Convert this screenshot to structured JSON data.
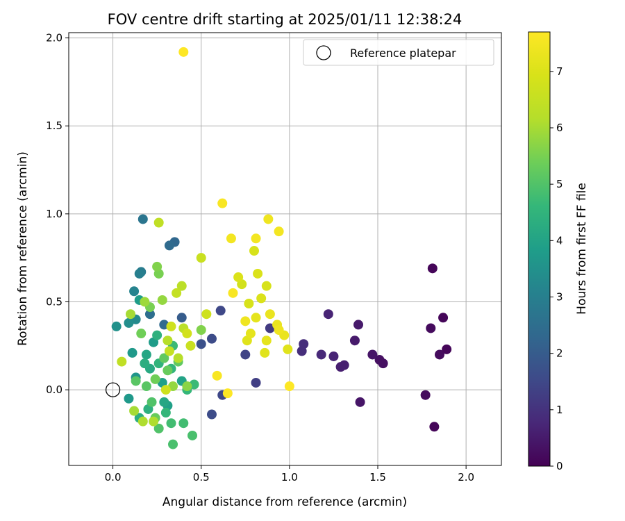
{
  "chart_data": {
    "type": "scatter",
    "title": "FOV centre drift starting at 2025/01/11 12:38:24",
    "xlabel": "Angular distance from reference (arcmin)",
    "ylabel": "Rotation from reference (arcmin)",
    "xlim": [
      -0.25,
      2.2
    ],
    "ylim": [
      -0.43,
      2.03
    ],
    "xticks": [
      0.0,
      0.5,
      1.0,
      1.5,
      2.0
    ],
    "xtick_labels": [
      "0.0",
      "0.5",
      "1.0",
      "1.5",
      "2.0"
    ],
    "yticks": [
      0.0,
      0.5,
      1.0,
      1.5,
      2.0
    ],
    "ytick_labels": [
      "0.0",
      "0.5",
      "1.0",
      "1.5",
      "2.0"
    ],
    "grid": true,
    "legend": {
      "placement": "top-right",
      "entries": [
        "Reference platepar"
      ]
    },
    "colorbar": {
      "label": "Hours from first FF file",
      "range": [
        0,
        7.7
      ],
      "ticks": [
        0,
        1,
        2,
        3,
        4,
        5,
        6,
        7
      ],
      "tick_labels": [
        "0",
        "1",
        "2",
        "3",
        "4",
        "5",
        "6",
        "7"
      ],
      "colormap": "viridis"
    },
    "reference_point": {
      "name": "Reference platepar",
      "x": 0.0,
      "y": 0.0
    },
    "points": [
      {
        "x": 1.81,
        "y": 0.69,
        "c": 0.1
      },
      {
        "x": 1.82,
        "y": -0.21,
        "c": 0.1
      },
      {
        "x": 1.87,
        "y": 0.41,
        "c": 0.1
      },
      {
        "x": 1.89,
        "y": 0.23,
        "c": 0.1
      },
      {
        "x": 1.85,
        "y": 0.2,
        "c": 0.2
      },
      {
        "x": 1.8,
        "y": 0.35,
        "c": 0.2
      },
      {
        "x": 1.77,
        "y": -0.03,
        "c": 0.2
      },
      {
        "x": 1.53,
        "y": 0.15,
        "c": 0.3
      },
      {
        "x": 1.51,
        "y": 0.17,
        "c": 0.3
      },
      {
        "x": 1.47,
        "y": 0.2,
        "c": 0.4
      },
      {
        "x": 1.4,
        "y": -0.07,
        "c": 0.4
      },
      {
        "x": 1.39,
        "y": 0.37,
        "c": 0.5
      },
      {
        "x": 1.37,
        "y": 0.28,
        "c": 0.5
      },
      {
        "x": 1.31,
        "y": 0.14,
        "c": 0.6
      },
      {
        "x": 1.29,
        "y": 0.13,
        "c": 0.6
      },
      {
        "x": 1.25,
        "y": 0.19,
        "c": 0.7
      },
      {
        "x": 1.22,
        "y": 0.43,
        "c": 0.7
      },
      {
        "x": 1.18,
        "y": 0.2,
        "c": 0.8
      },
      {
        "x": 1.08,
        "y": 0.26,
        "c": 0.9
      },
      {
        "x": 1.07,
        "y": 0.22,
        "c": 0.9
      },
      {
        "x": 0.89,
        "y": 0.35,
        "c": 1.2
      },
      {
        "x": 0.81,
        "y": 0.04,
        "c": 1.3
      },
      {
        "x": 0.75,
        "y": 0.2,
        "c": 1.4
      },
      {
        "x": 0.61,
        "y": 0.45,
        "c": 1.5
      },
      {
        "x": 0.62,
        "y": -0.03,
        "c": 1.5
      },
      {
        "x": 0.56,
        "y": 0.29,
        "c": 1.6
      },
      {
        "x": 0.56,
        "y": -0.14,
        "c": 1.6
      },
      {
        "x": 0.5,
        "y": 0.26,
        "c": 1.7
      },
      {
        "x": 0.39,
        "y": 0.41,
        "c": 2.0
      },
      {
        "x": 0.35,
        "y": 0.84,
        "c": 2.3
      },
      {
        "x": 0.32,
        "y": 0.82,
        "c": 2.4
      },
      {
        "x": 0.29,
        "y": 0.37,
        "c": 2.4
      },
      {
        "x": 0.21,
        "y": 0.43,
        "c": 2.5
      },
      {
        "x": 0.17,
        "y": 0.97,
        "c": 2.7
      },
      {
        "x": 0.16,
        "y": 0.67,
        "c": 2.9
      },
      {
        "x": 0.15,
        "y": 0.66,
        "c": 3.0
      },
      {
        "x": 0.12,
        "y": 0.56,
        "c": 3.1
      },
      {
        "x": 0.13,
        "y": 0.4,
        "c": 3.3
      },
      {
        "x": 0.09,
        "y": 0.38,
        "c": 3.4
      },
      {
        "x": 0.02,
        "y": 0.36,
        "c": 3.5
      },
      {
        "x": 0.13,
        "y": 0.07,
        "c": 3.6
      },
      {
        "x": 0.11,
        "y": 0.21,
        "c": 3.7
      },
      {
        "x": 0.09,
        "y": -0.05,
        "c": 3.7
      },
      {
        "x": 0.15,
        "y": 0.51,
        "c": 3.8
      },
      {
        "x": 0.23,
        "y": 0.27,
        "c": 3.8
      },
      {
        "x": 0.28,
        "y": 0.04,
        "c": 3.9
      },
      {
        "x": 0.31,
        "y": -0.09,
        "c": 3.9
      },
      {
        "x": 0.39,
        "y": 0.05,
        "c": 4.0
      },
      {
        "x": 0.29,
        "y": -0.07,
        "c": 4.1
      },
      {
        "x": 0.19,
        "y": 0.2,
        "c": 4.1
      },
      {
        "x": 0.21,
        "y": 0.12,
        "c": 4.2
      },
      {
        "x": 0.15,
        "y": -0.16,
        "c": 4.3
      },
      {
        "x": 0.18,
        "y": 0.15,
        "c": 4.3
      },
      {
        "x": 0.2,
        "y": -0.11,
        "c": 4.4
      },
      {
        "x": 0.25,
        "y": 0.31,
        "c": 4.4
      },
      {
        "x": 0.26,
        "y": 0.15,
        "c": 4.5
      },
      {
        "x": 0.33,
        "y": 0.12,
        "c": 4.5
      },
      {
        "x": 0.3,
        "y": -0.13,
        "c": 4.6
      },
      {
        "x": 0.42,
        "y": 0.0,
        "c": 4.6
      },
      {
        "x": 0.46,
        "y": 0.03,
        "c": 4.7
      },
      {
        "x": 0.34,
        "y": 0.25,
        "c": 4.7
      },
      {
        "x": 0.33,
        "y": -0.19,
        "c": 4.8
      },
      {
        "x": 0.4,
        "y": -0.19,
        "c": 4.8
      },
      {
        "x": 0.45,
        "y": -0.26,
        "c": 4.9
      },
      {
        "x": 0.34,
        "y": -0.31,
        "c": 4.9
      },
      {
        "x": 0.26,
        "y": -0.22,
        "c": 5.0
      },
      {
        "x": 0.22,
        "y": -0.07,
        "c": 5.0
      },
      {
        "x": 0.13,
        "y": 0.05,
        "c": 5.1
      },
      {
        "x": 0.19,
        "y": 0.02,
        "c": 5.1
      },
      {
        "x": 0.29,
        "y": 0.18,
        "c": 5.2
      },
      {
        "x": 0.37,
        "y": 0.16,
        "c": 5.2
      },
      {
        "x": 0.24,
        "y": -0.16,
        "c": 5.3
      },
      {
        "x": 0.31,
        "y": 0.11,
        "c": 5.3
      },
      {
        "x": 0.24,
        "y": 0.06,
        "c": 5.4
      },
      {
        "x": 0.16,
        "y": 0.32,
        "c": 5.4
      },
      {
        "x": 0.21,
        "y": 0.47,
        "c": 5.5
      },
      {
        "x": 0.26,
        "y": 0.66,
        "c": 5.5
      },
      {
        "x": 0.25,
        "y": 0.7,
        "c": 5.6
      },
      {
        "x": 0.5,
        "y": 0.34,
        "c": 5.6
      },
      {
        "x": 0.42,
        "y": 0.02,
        "c": 5.7
      },
      {
        "x": 0.34,
        "y": 0.02,
        "c": 5.8
      },
      {
        "x": 0.28,
        "y": 0.51,
        "c": 5.8
      },
      {
        "x": 0.18,
        "y": 0.5,
        "c": 5.9
      },
      {
        "x": 0.1,
        "y": 0.43,
        "c": 6.0
      },
      {
        "x": 0.12,
        "y": -0.12,
        "c": 6.0
      },
      {
        "x": 0.17,
        "y": -0.18,
        "c": 6.1
      },
      {
        "x": 0.23,
        "y": -0.18,
        "c": 6.1
      },
      {
        "x": 0.31,
        "y": 0.28,
        "c": 6.2
      },
      {
        "x": 0.37,
        "y": 0.18,
        "c": 6.2
      },
      {
        "x": 0.4,
        "y": 0.35,
        "c": 6.3
      },
      {
        "x": 0.39,
        "y": 0.59,
        "c": 6.3
      },
      {
        "x": 0.26,
        "y": 0.95,
        "c": 6.4
      },
      {
        "x": 0.05,
        "y": 0.16,
        "c": 6.4
      },
      {
        "x": 0.32,
        "y": 0.22,
        "c": 6.5
      },
      {
        "x": 0.36,
        "y": 0.55,
        "c": 6.5
      },
      {
        "x": 0.44,
        "y": 0.25,
        "c": 6.6
      },
      {
        "x": 0.5,
        "y": 0.75,
        "c": 6.6
      },
      {
        "x": 0.53,
        "y": 0.43,
        "c": 6.7
      },
      {
        "x": 0.3,
        "y": 0.0,
        "c": 6.7
      },
      {
        "x": 0.33,
        "y": 0.36,
        "c": 6.7
      },
      {
        "x": 0.42,
        "y": 0.32,
        "c": 6.8
      },
      {
        "x": 0.73,
        "y": 0.6,
        "c": 6.8
      },
      {
        "x": 0.77,
        "y": 0.49,
        "c": 6.9
      },
      {
        "x": 0.87,
        "y": 0.59,
        "c": 6.9
      },
      {
        "x": 0.8,
        "y": 0.79,
        "c": 6.9
      },
      {
        "x": 0.71,
        "y": 0.64,
        "c": 7.0
      },
      {
        "x": 0.82,
        "y": 0.66,
        "c": 7.0
      },
      {
        "x": 0.84,
        "y": 0.52,
        "c": 7.0
      },
      {
        "x": 0.86,
        "y": 0.21,
        "c": 7.1
      },
      {
        "x": 0.99,
        "y": 0.23,
        "c": 7.1
      },
      {
        "x": 0.76,
        "y": 0.28,
        "c": 7.1
      },
      {
        "x": 0.78,
        "y": 0.32,
        "c": 7.2
      },
      {
        "x": 0.81,
        "y": 0.41,
        "c": 7.2
      },
      {
        "x": 0.87,
        "y": 0.28,
        "c": 7.2
      },
      {
        "x": 0.93,
        "y": 0.37,
        "c": 7.3
      },
      {
        "x": 0.97,
        "y": 0.31,
        "c": 7.3
      },
      {
        "x": 0.89,
        "y": 0.43,
        "c": 7.3
      },
      {
        "x": 0.94,
        "y": 0.34,
        "c": 7.4
      },
      {
        "x": 0.75,
        "y": 0.39,
        "c": 7.4
      },
      {
        "x": 0.88,
        "y": 0.97,
        "c": 7.4
      },
      {
        "x": 0.81,
        "y": 0.86,
        "c": 7.5
      },
      {
        "x": 0.94,
        "y": 0.9,
        "c": 7.5
      },
      {
        "x": 0.67,
        "y": 0.86,
        "c": 7.5
      },
      {
        "x": 0.62,
        "y": 1.06,
        "c": 7.6
      },
      {
        "x": 0.68,
        "y": 0.55,
        "c": 7.6
      },
      {
        "x": 0.59,
        "y": 0.08,
        "c": 7.6
      },
      {
        "x": 1.0,
        "y": 0.02,
        "c": 7.7
      },
      {
        "x": 0.65,
        "y": -0.02,
        "c": 7.7
      },
      {
        "x": 0.4,
        "y": 1.92,
        "c": 7.7
      }
    ]
  }
}
